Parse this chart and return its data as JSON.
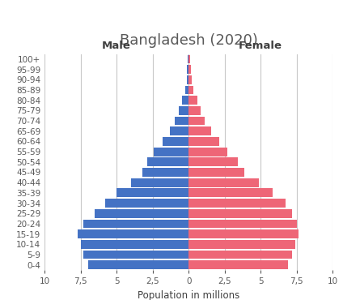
{
  "title": "Bangladesh (2020)",
  "xlabel": "Population in millions",
  "male_label": "Male",
  "female_label": "Female",
  "age_groups": [
    "0-4",
    "5-9",
    "10-14",
    "15-19",
    "20-24",
    "25-29",
    "30-34",
    "35-39",
    "40-44",
    "45-49",
    "50-54",
    "55-59",
    "60-64",
    "65-69",
    "70-74",
    "75-79",
    "80-84",
    "85-89",
    "90-94",
    "95-99",
    "100+"
  ],
  "male_values": [
    7.0,
    7.3,
    7.5,
    7.7,
    7.3,
    6.5,
    5.8,
    5.0,
    4.0,
    3.2,
    2.9,
    2.4,
    1.8,
    1.3,
    0.95,
    0.7,
    0.45,
    0.25,
    0.15,
    0.1,
    0.05
  ],
  "female_values": [
    6.9,
    7.2,
    7.4,
    7.6,
    7.5,
    7.2,
    6.7,
    5.85,
    4.85,
    3.85,
    3.4,
    2.7,
    2.1,
    1.55,
    1.1,
    0.85,
    0.6,
    0.35,
    0.2,
    0.15,
    0.1
  ],
  "male_color": "#4472C4",
  "female_color": "#EE6677",
  "background_color": "#FFFFFF",
  "title_color": "#595959",
  "label_color": "#404040",
  "tick_color": "#595959",
  "gridline_color": "#C8C8C8",
  "xlim": [
    -10,
    10
  ],
  "xticks": [
    -10,
    -7.5,
    -5,
    -2.5,
    0,
    2.5,
    5,
    7.5,
    10
  ],
  "xtick_labels": [
    "10",
    "7,5",
    "5",
    "2,5",
    "0",
    "2,5",
    "5",
    "7,5",
    "10"
  ],
  "bar_height": 0.85,
  "title_fontsize": 13,
  "axis_label_fontsize": 8.5,
  "tick_fontsize": 7.5,
  "gender_label_fontsize": 9.5
}
